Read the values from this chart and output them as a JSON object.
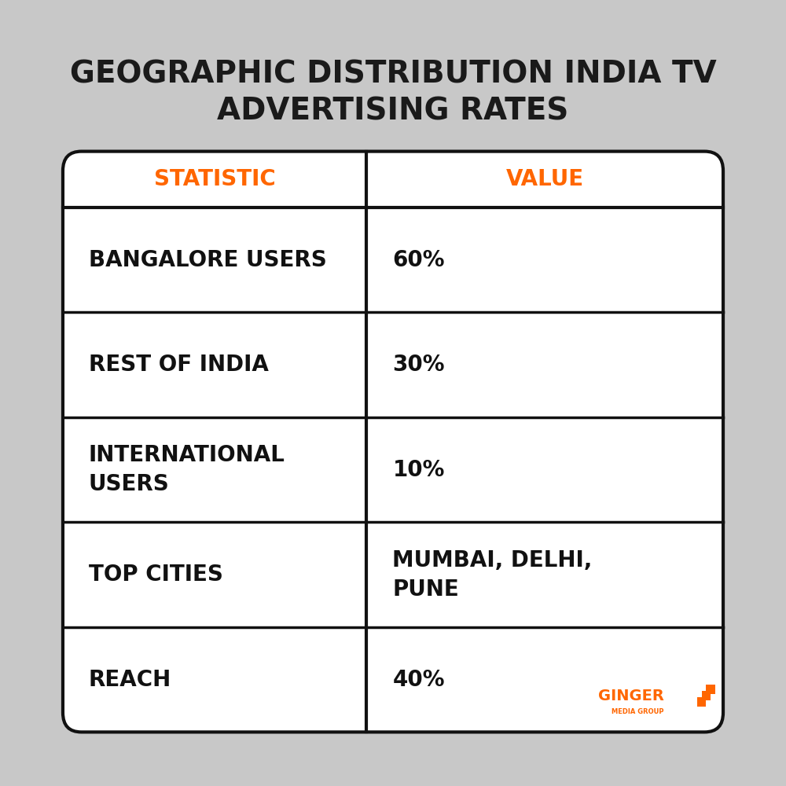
{
  "title": "GEOGRAPHIC DISTRIBUTION INDIA TV\nADVERTISING RATES",
  "title_fontsize": 28,
  "title_color": "#1a1a1a",
  "background_color": "#c8c8c8",
  "table_bg": "#ffffff",
  "header_color": "#ff6600",
  "header_fontsize": 20,
  "cell_fontsize": 20,
  "col1_header": "STATISTIC",
  "col2_header": "VALUE",
  "rows": [
    [
      "BANGALORE USERS",
      "60%"
    ],
    [
      "REST OF INDIA",
      "30%"
    ],
    [
      "INTERNATIONAL\nUSERS",
      "10%"
    ],
    [
      "TOP CITIES",
      "MUMBAI, DELHI,\nPUNE"
    ],
    [
      "REACH",
      "40%"
    ]
  ],
  "border_color": "#111111",
  "border_width": 3,
  "divider_color": "#111111",
  "logo_text": "GINGER",
  "logo_sub": "MEDIA GROUP",
  "logo_color": "#ff6600"
}
